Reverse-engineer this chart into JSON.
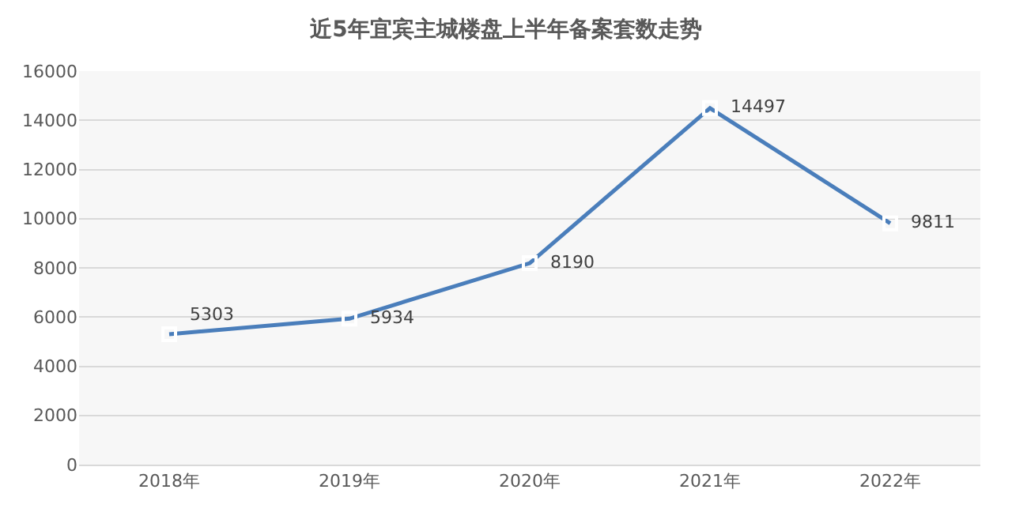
{
  "chart_data": {
    "type": "line",
    "title": "近5年宜宾主城楼盘上半年备案套数走势",
    "categories": [
      "2018年",
      "2019年",
      "2020年",
      "2021年",
      "2022年"
    ],
    "series": [
      {
        "color": "#4a7ebb",
        "values": [
          5303,
          5934,
          8190,
          14497,
          9811
        ]
      }
    ],
    "ylim": [
      0,
      16000
    ],
    "yticks": [
      0,
      2000,
      4000,
      6000,
      8000,
      10000,
      12000,
      14000,
      16000
    ],
    "grid": "y",
    "marker": "square",
    "line_style": "solid",
    "data_labels": true
  }
}
